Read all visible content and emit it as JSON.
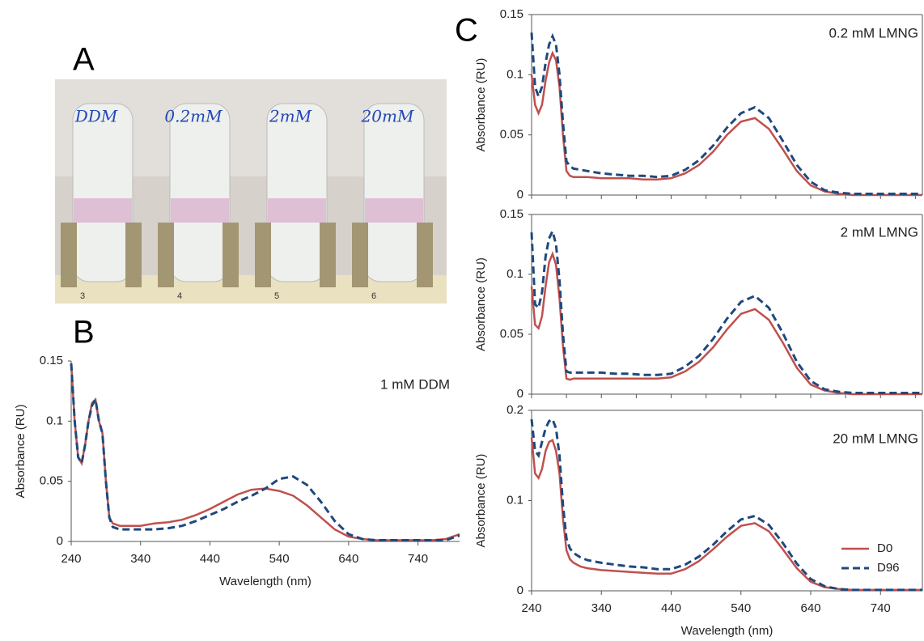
{
  "panel_labels": [
    "A",
    "B",
    "C"
  ],
  "photo": {
    "tube_labels": [
      "DDM",
      "0.2mM",
      "2mM",
      "20mM"
    ],
    "slot_numbers": [
      "3",
      "4",
      "5",
      "6"
    ]
  },
  "chart_data": [
    {
      "type": "line",
      "annotation": "1 mM DDM",
      "x_label": "Wavelength (nm)",
      "y_label": "Absorbance (RU)",
      "xlim": [
        240,
        800
      ],
      "xticks": [
        240,
        340,
        440,
        540,
        640,
        740
      ],
      "ylim": [
        0,
        0.15
      ],
      "yticks": [
        0,
        0.05,
        0.1,
        0.15
      ],
      "xtick_labels": true,
      "x": [
        240,
        245,
        250,
        255,
        260,
        265,
        270,
        275,
        280,
        285,
        290,
        295,
        300,
        310,
        320,
        340,
        360,
        380,
        400,
        420,
        440,
        460,
        480,
        500,
        520,
        540,
        560,
        580,
        600,
        620,
        640,
        660,
        680,
        700,
        720,
        740,
        760,
        780,
        800
      ],
      "series": [
        {
          "color": "#c0504d",
          "dash": false,
          "values": [
            0.148,
            0.1,
            0.07,
            0.065,
            0.08,
            0.1,
            0.115,
            0.118,
            0.1,
            0.09,
            0.05,
            0.02,
            0.015,
            0.013,
            0.013,
            0.013,
            0.015,
            0.016,
            0.018,
            0.022,
            0.027,
            0.033,
            0.039,
            0.043,
            0.044,
            0.042,
            0.038,
            0.03,
            0.02,
            0.01,
            0.004,
            0.002,
            0.001,
            0.001,
            0.001,
            0.001,
            0.001,
            0.002,
            0.006
          ]
        },
        {
          "color": "#1f497d",
          "dash": true,
          "values": [
            0.148,
            0.1,
            0.07,
            0.065,
            0.08,
            0.1,
            0.113,
            0.118,
            0.1,
            0.09,
            0.05,
            0.02,
            0.012,
            0.01,
            0.01,
            0.01,
            0.01,
            0.011,
            0.013,
            0.017,
            0.022,
            0.027,
            0.033,
            0.038,
            0.044,
            0.052,
            0.054,
            0.047,
            0.033,
            0.017,
            0.006,
            0.002,
            0.001,
            0.001,
            0.001,
            0.001,
            0.001,
            0.001,
            0.005
          ]
        }
      ]
    },
    {
      "type": "line",
      "annotation": "0.2 mM LMNG",
      "y_label": "Absorbance (RU)",
      "xlim": [
        240,
        800
      ],
      "xticks": [
        240,
        290,
        340,
        390,
        440,
        490,
        540,
        590,
        640,
        690,
        740,
        790
      ],
      "ylim": [
        0,
        0.15
      ],
      "yticks": [
        0,
        0.05,
        0.1,
        0.15
      ],
      "xtick_labels": false,
      "x": [
        240,
        245,
        250,
        255,
        260,
        265,
        270,
        275,
        280,
        285,
        290,
        295,
        300,
        310,
        320,
        340,
        360,
        380,
        400,
        420,
        440,
        460,
        480,
        500,
        520,
        540,
        560,
        580,
        600,
        620,
        640,
        660,
        680,
        700,
        720,
        740,
        760,
        780,
        800
      ],
      "series": [
        {
          "color": "#c0504d",
          "dash": false,
          "values": [
            0.1,
            0.075,
            0.068,
            0.075,
            0.095,
            0.11,
            0.118,
            0.112,
            0.09,
            0.05,
            0.02,
            0.016,
            0.015,
            0.015,
            0.015,
            0.014,
            0.014,
            0.014,
            0.013,
            0.013,
            0.014,
            0.018,
            0.025,
            0.036,
            0.05,
            0.061,
            0.064,
            0.055,
            0.038,
            0.02,
            0.008,
            0.003,
            0.001,
            0,
            0,
            0,
            0,
            0,
            0
          ]
        },
        {
          "color": "#1f497d",
          "dash": true,
          "values": [
            0.135,
            0.09,
            0.082,
            0.09,
            0.11,
            0.125,
            0.132,
            0.125,
            0.1,
            0.06,
            0.028,
            0.024,
            0.022,
            0.021,
            0.02,
            0.018,
            0.017,
            0.016,
            0.016,
            0.015,
            0.016,
            0.021,
            0.029,
            0.041,
            0.056,
            0.068,
            0.073,
            0.064,
            0.045,
            0.025,
            0.011,
            0.004,
            0.002,
            0.001,
            0.001,
            0.001,
            0.001,
            0.001,
            0.001
          ]
        }
      ]
    },
    {
      "type": "line",
      "annotation": "2 mM LMNG",
      "y_label": "Absorbance (RU)",
      "xlim": [
        240,
        800
      ],
      "xticks": [
        240,
        290,
        340,
        390,
        440,
        490,
        540,
        590,
        640,
        690,
        740,
        790
      ],
      "ylim": [
        0,
        0.15
      ],
      "yticks": [
        0,
        0.05,
        0.1,
        0.15
      ],
      "xtick_labels": false,
      "x": [
        240,
        245,
        250,
        255,
        260,
        265,
        270,
        275,
        280,
        285,
        290,
        295,
        300,
        310,
        320,
        340,
        360,
        380,
        400,
        420,
        440,
        460,
        480,
        500,
        520,
        540,
        560,
        580,
        600,
        620,
        640,
        660,
        680,
        700,
        720,
        740,
        760,
        780,
        800
      ],
      "series": [
        {
          "color": "#c0504d",
          "dash": false,
          "values": [
            0.09,
            0.058,
            0.055,
            0.065,
            0.09,
            0.11,
            0.117,
            0.108,
            0.08,
            0.04,
            0.013,
            0.012,
            0.013,
            0.013,
            0.013,
            0.013,
            0.013,
            0.013,
            0.013,
            0.013,
            0.014,
            0.019,
            0.027,
            0.039,
            0.054,
            0.067,
            0.071,
            0.062,
            0.043,
            0.022,
            0.008,
            0.003,
            0.001,
            0,
            0,
            0,
            0,
            0,
            0
          ]
        },
        {
          "color": "#1f497d",
          "dash": true,
          "values": [
            0.135,
            0.075,
            0.072,
            0.085,
            0.115,
            0.13,
            0.136,
            0.125,
            0.095,
            0.05,
            0.019,
            0.018,
            0.018,
            0.018,
            0.018,
            0.018,
            0.017,
            0.017,
            0.016,
            0.016,
            0.017,
            0.023,
            0.032,
            0.046,
            0.063,
            0.077,
            0.082,
            0.072,
            0.051,
            0.027,
            0.011,
            0.004,
            0.002,
            0.001,
            0.001,
            0.001,
            0.001,
            0.001,
            0.001
          ]
        }
      ]
    },
    {
      "type": "line",
      "annotation": "20 mM LMNG",
      "x_label": "Wavelength (nm)",
      "y_label": "Absorbance (RU)",
      "xlim": [
        240,
        800
      ],
      "xticks": [
        240,
        340,
        440,
        540,
        640,
        740
      ],
      "ylim": [
        0,
        0.2
      ],
      "yticks": [
        0,
        0.1,
        0.2
      ],
      "xtick_labels": true,
      "legend": "lower right",
      "x": [
        240,
        245,
        250,
        255,
        260,
        265,
        270,
        275,
        280,
        285,
        290,
        295,
        300,
        310,
        320,
        340,
        360,
        380,
        400,
        420,
        440,
        460,
        480,
        500,
        520,
        540,
        560,
        580,
        600,
        620,
        640,
        660,
        680,
        700,
        720,
        740,
        760,
        780,
        800
      ],
      "series": [
        {
          "name": "D0",
          "color": "#c0504d",
          "dash": false,
          "values": [
            0.17,
            0.13,
            0.125,
            0.135,
            0.155,
            0.165,
            0.167,
            0.155,
            0.13,
            0.08,
            0.045,
            0.035,
            0.031,
            0.027,
            0.025,
            0.023,
            0.022,
            0.021,
            0.02,
            0.019,
            0.019,
            0.024,
            0.033,
            0.046,
            0.06,
            0.072,
            0.075,
            0.066,
            0.046,
            0.025,
            0.01,
            0.004,
            0.002,
            0.001,
            0.001,
            0.001,
            0.001,
            0.001,
            0.001
          ]
        },
        {
          "name": "D96",
          "color": "#1f497d",
          "dash": true,
          "values": [
            0.19,
            0.155,
            0.15,
            0.165,
            0.18,
            0.188,
            0.19,
            0.18,
            0.15,
            0.095,
            0.058,
            0.047,
            0.042,
            0.037,
            0.034,
            0.031,
            0.029,
            0.027,
            0.026,
            0.024,
            0.024,
            0.029,
            0.038,
            0.051,
            0.066,
            0.079,
            0.083,
            0.073,
            0.053,
            0.03,
            0.013,
            0.005,
            0.002,
            0.001,
            0.001,
            0.001,
            0.001,
            0.001,
            0.001
          ]
        }
      ]
    }
  ]
}
